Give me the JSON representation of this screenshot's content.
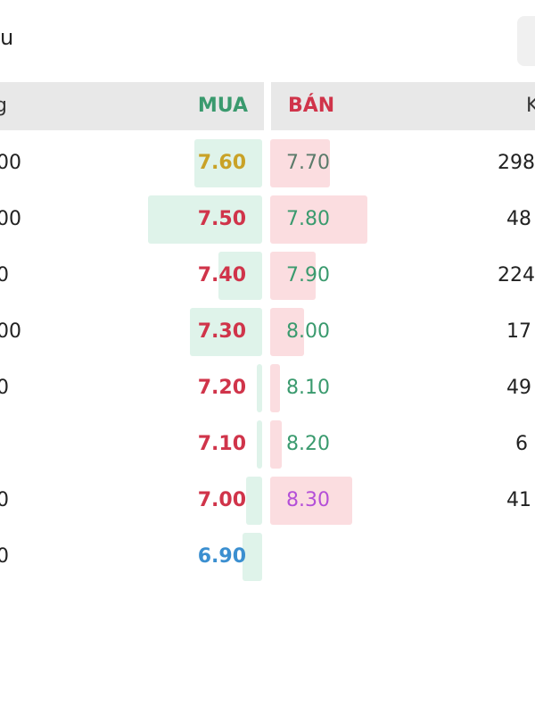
{
  "header": {
    "title": "u"
  },
  "table": {
    "columns": [
      "g",
      "MUA",
      "BÁN",
      "K"
    ],
    "column_colors": [
      "#333333",
      "#3a9a6e",
      "#d0344a",
      "#333333"
    ],
    "rows": [
      {
        "left": "00",
        "buy": "7.60",
        "buy_color": "#c9a227",
        "sell": "7.70",
        "sell_color": "#5a7a6a",
        "right": "298"
      },
      {
        "left": "00",
        "buy": "7.50",
        "buy_color": "#d0344a",
        "sell": "7.80",
        "sell_color": "#3a9a6e",
        "right": "48"
      },
      {
        "left": "0",
        "buy": "7.40",
        "buy_color": "#d0344a",
        "sell": "7.90",
        "sell_color": "#3a9a6e",
        "right": "224"
      },
      {
        "left": "00",
        "buy": "7.30",
        "buy_color": "#d0344a",
        "sell": "8.00",
        "sell_color": "#3a9a6e",
        "right": "17"
      },
      {
        "left": "0",
        "buy": "7.20",
        "buy_color": "#d0344a",
        "sell": "8.10",
        "sell_color": "#3a9a6e",
        "right": "49"
      },
      {
        "buy": "7.10",
        "buy_color": "#d0344a",
        "sell": "8.20",
        "sell_color": "#3a9a6e",
        "right": "6"
      },
      {
        "left": "0",
        "buy": "7.00",
        "buy_color": "#d0344a",
        "sell": "8.30",
        "sell_color": "#b44fd8",
        "right": "41"
      },
      {
        "left": "0",
        "buy": "6.90",
        "buy_color": "#3b8fd0"
      }
    ]
  }
}
